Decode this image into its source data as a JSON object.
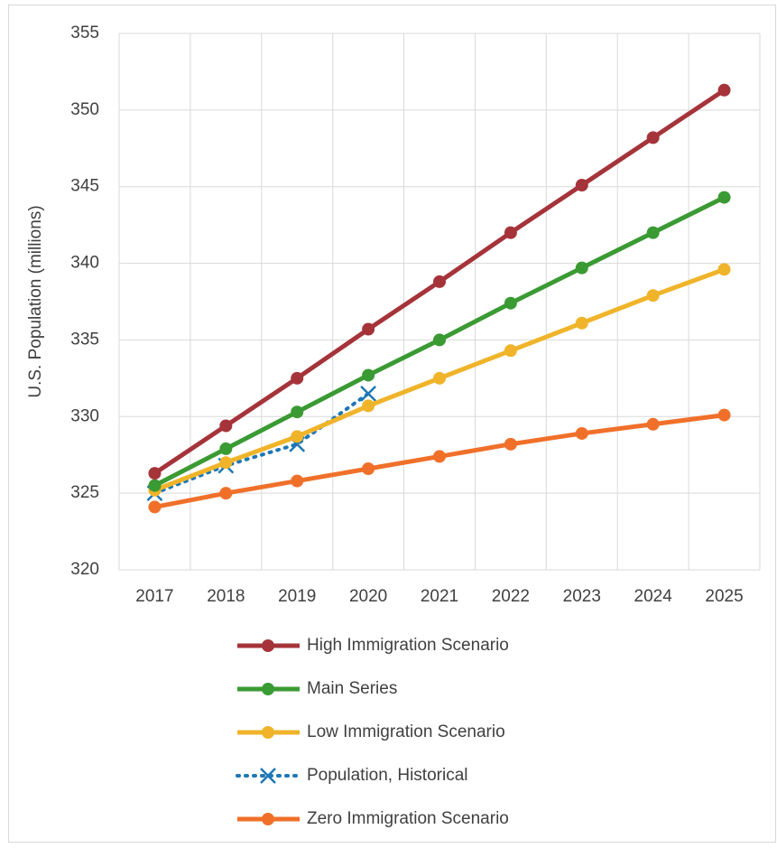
{
  "chart_data": {
    "type": "line",
    "y_label": "U.S. Population (millions)",
    "categories": [
      "2017",
      "2018",
      "2019",
      "2020",
      "2021",
      "2022",
      "2023",
      "2024",
      "2025"
    ],
    "ylim": [
      320,
      355
    ],
    "yticks": [
      320,
      325,
      330,
      335,
      340,
      345,
      350,
      355
    ],
    "grid": true,
    "legend": "bottom",
    "series": [
      {
        "name": "High Immigration Scenario",
        "color": "#a5343a",
        "marker": "circle",
        "line_style": "solid",
        "values": [
          326.3,
          329.4,
          332.5,
          335.7,
          338.8,
          342.0,
          345.1,
          348.2,
          351.3
        ]
      },
      {
        "name": "Main Series",
        "color": "#3a9a33",
        "marker": "circle",
        "line_style": "solid",
        "values": [
          325.5,
          327.9,
          330.3,
          332.7,
          335.0,
          337.4,
          339.7,
          342.0,
          344.3
        ]
      },
      {
        "name": "Low Immigration Scenario",
        "color": "#f0b42a",
        "marker": "circle",
        "line_style": "solid",
        "values": [
          325.2,
          327.0,
          328.7,
          330.7,
          332.5,
          334.3,
          336.1,
          337.9,
          339.6
        ]
      },
      {
        "name": "Population, Historical",
        "color": "#1f77b4",
        "marker": "x",
        "line_style": "dotted",
        "values": [
          325.0,
          326.8,
          328.2,
          331.5,
          null,
          null,
          null,
          null,
          null
        ]
      },
      {
        "name": "Zero Immigration Scenario",
        "color": "#f0702a",
        "marker": "circle",
        "line_style": "solid",
        "values": [
          324.1,
          325.0,
          325.8,
          326.6,
          327.4,
          328.2,
          328.9,
          329.5,
          330.1
        ]
      }
    ]
  }
}
